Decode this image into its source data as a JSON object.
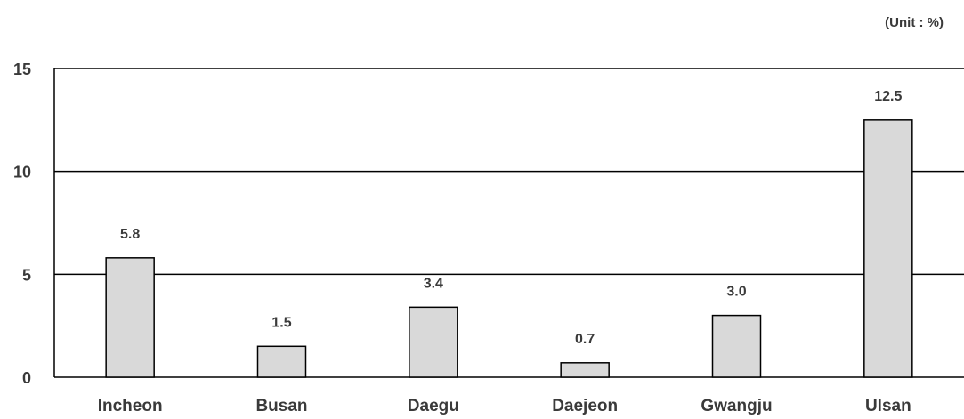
{
  "unit_label": "(Unit : %)",
  "chart_data": {
    "type": "bar",
    "categories": [
      "Incheon",
      "Busan",
      "Daegu",
      "Daejeon",
      "Gwangju",
      "Ulsan"
    ],
    "values": [
      5.8,
      1.5,
      3.4,
      0.7,
      3.0,
      12.5
    ],
    "value_labels": [
      "5.8",
      "1.5",
      "3.4",
      "0.7",
      "3.0",
      "12.5"
    ],
    "title": "",
    "xlabel": "",
    "ylabel": "",
    "ylim": [
      0,
      15
    ],
    "yticks": [
      0,
      5,
      10,
      15
    ],
    "ytick_labels": [
      "0",
      "5",
      "10",
      "15"
    ],
    "grid": true,
    "legend": "none",
    "colors": {
      "bar_fill": "#d9d9d9",
      "bar_stroke": "#000000",
      "grid": "#000000",
      "text": "#3a3a3a"
    }
  }
}
